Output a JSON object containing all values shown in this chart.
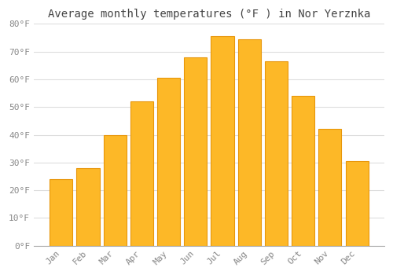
{
  "title": "Average monthly temperatures (°F ) in Nor Yerznka",
  "months": [
    "Jan",
    "Feb",
    "Mar",
    "Apr",
    "May",
    "Jun",
    "Jul",
    "Aug",
    "Sep",
    "Oct",
    "Nov",
    "Dec"
  ],
  "values": [
    24,
    28,
    40,
    52,
    60.5,
    68,
    75.5,
    74.5,
    66.5,
    54,
    42,
    30.5
  ],
  "bar_color": "#FDB827",
  "bar_edge_color": "#E8960A",
  "background_color": "#ffffff",
  "plot_bg_color": "#ffffff",
  "grid_color": "#dddddd",
  "ylim": [
    0,
    80
  ],
  "yticks": [
    0,
    10,
    20,
    30,
    40,
    50,
    60,
    70,
    80
  ],
  "title_fontsize": 10,
  "tick_fontsize": 8,
  "title_color": "#444444",
  "tick_color": "#888888",
  "bar_width": 0.85
}
